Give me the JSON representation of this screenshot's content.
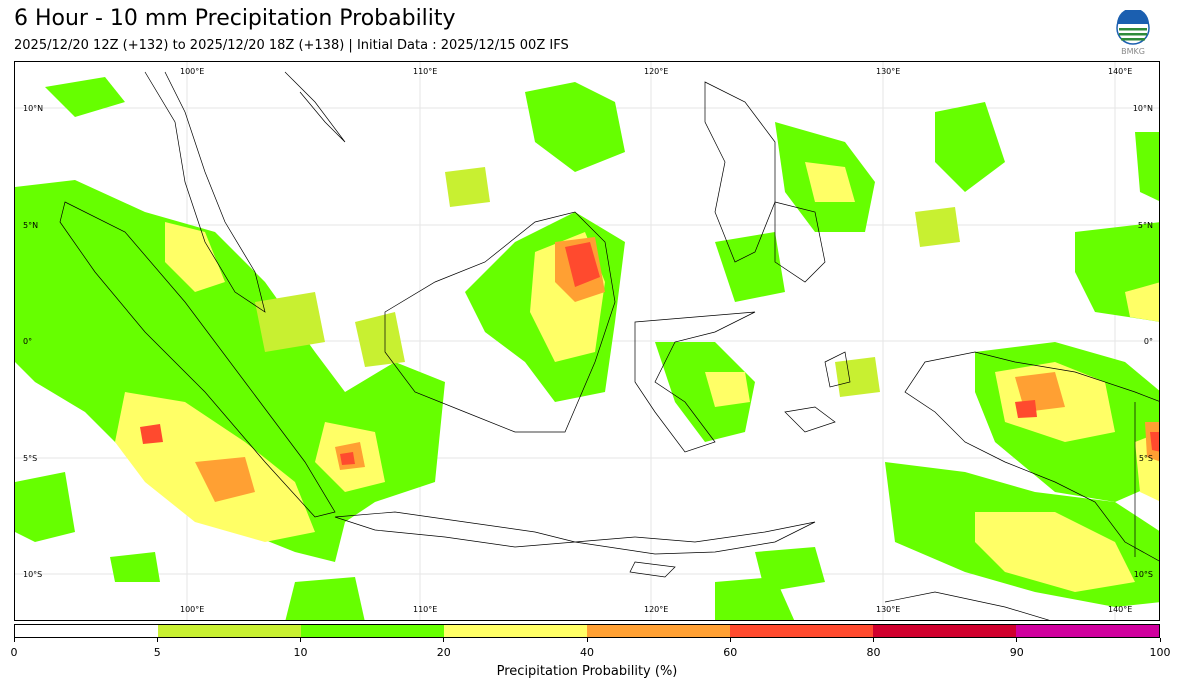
{
  "title": "6 Hour - 10 mm Precipitation Probability",
  "subtitle": "2025/12/20 12Z (+132) to 2025/12/20 18Z (+138) | Initial Data : 2025/12/15 00Z IFS",
  "logo": {
    "text": "BMKG",
    "icon": "bmkg-logo-icon"
  },
  "map": {
    "lon_labels": [
      "100°E",
      "110°E",
      "120°E",
      "130°E",
      "140°E"
    ],
    "lat_labels": [
      "10°N",
      "5°N",
      "0°",
      "5°S",
      "10°S"
    ]
  },
  "legend": {
    "title": "Precipitation Probability (%)",
    "ticks": [
      "0",
      "5",
      "10",
      "20",
      "40",
      "60",
      "80",
      "90",
      "100"
    ],
    "colors": [
      "#ffffff",
      "#c8f031",
      "#66ff00",
      "#ffff66",
      "#ffa033",
      "#ff4a2e",
      "#d0002e",
      "#d0009e"
    ]
  }
}
